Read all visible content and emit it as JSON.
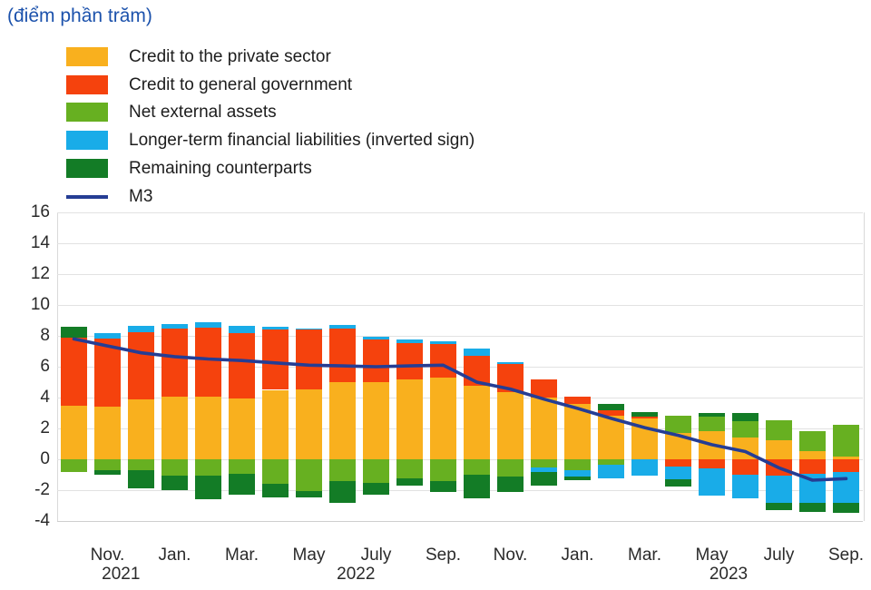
{
  "chart_data": {
    "type": "bar",
    "subtype": "stacked-bar-with-line",
    "title": "(điểm phần trăm)",
    "title_color": "#1c52ac",
    "x": [
      "Oct. 2021",
      "Nov. 2021",
      "Dec. 2021",
      "Jan. 2022",
      "Feb. 2022",
      "Mar. 2022",
      "Apr. 2022",
      "May 2022",
      "June 2022",
      "July 2022",
      "Aug. 2022",
      "Sep. 2022",
      "Oct. 2022",
      "Nov. 2022",
      "Dec. 2022",
      "Jan. 2023",
      "Feb. 2023",
      "Mar. 2023",
      "Apr. 2023",
      "May 2023",
      "June 2023",
      "July 2023",
      "Aug. 2023",
      "Sep. 2023"
    ],
    "series": [
      {
        "name": "Credit to the private sector",
        "color": "#F9B01E",
        "values": [
          3.45,
          3.4,
          3.9,
          4.05,
          4.05,
          3.95,
          4.5,
          4.55,
          5.0,
          5.0,
          5.2,
          5.3,
          4.75,
          4.35,
          4.0,
          3.6,
          2.8,
          2.65,
          1.7,
          1.85,
          1.4,
          1.25,
          0.55,
          0.15
        ]
      },
      {
        "name": "Credit to general government",
        "color": "#F5420D",
        "values": [
          4.45,
          4.45,
          4.35,
          4.4,
          4.5,
          4.25,
          3.9,
          3.85,
          3.45,
          2.75,
          2.35,
          2.15,
          1.95,
          1.85,
          1.15,
          0.45,
          0.4,
          0.1,
          -0.45,
          -0.6,
          -1.0,
          -1.05,
          -0.95,
          -0.8
        ]
      },
      {
        "name": "Net external assets",
        "color": "#67B021",
        "values": [
          -0.85,
          -0.7,
          -0.7,
          -1.05,
          -1.05,
          -0.95,
          -1.6,
          -2.05,
          -1.4,
          -1.55,
          -1.25,
          -1.4,
          -1.0,
          -1.1,
          -0.5,
          -0.7,
          -0.35,
          0,
          1.15,
          0.9,
          1.05,
          1.3,
          1.3,
          2.1
        ]
      },
      {
        "name": "Longer-term financial liabilities (inverted sign)",
        "color": "#19ACE8",
        "values": [
          0,
          0.35,
          0.4,
          0.3,
          0.35,
          0.45,
          0.2,
          0.05,
          0.25,
          0.2,
          0.2,
          0.2,
          0.45,
          0.1,
          -0.35,
          -0.4,
          -0.9,
          -1.05,
          -0.85,
          -1.75,
          -1.5,
          -1.8,
          -1.85,
          -2.05
        ]
      },
      {
        "name": "Remaining counterparts",
        "color": "#137C26",
        "values": [
          0.7,
          -0.3,
          -1.2,
          -0.95,
          -1.55,
          -1.35,
          -0.85,
          -0.4,
          -1.45,
          -0.75,
          -0.45,
          -0.7,
          -1.5,
          -1.0,
          -0.85,
          -0.25,
          0.4,
          0.3,
          -0.45,
          0.25,
          0.55,
          -0.45,
          -0.6,
          -0.6
        ]
      }
    ],
    "line_series": {
      "name": "M3",
      "color": "#253D94",
      "values": [
        7.8,
        7.35,
        6.9,
        6.65,
        6.5,
        6.4,
        6.25,
        6.1,
        6.05,
        6.0,
        6.05,
        6.1,
        5.0,
        4.55,
        3.9,
        3.3,
        2.65,
        2.05,
        1.55,
        0.95,
        0.5,
        -0.55,
        -1.35,
        -1.25
      ]
    },
    "ylim": [
      -4,
      16
    ],
    "ytick_step": 2,
    "ytick_labels": [
      "16",
      "14",
      "12",
      "10",
      "8",
      "6",
      "4",
      "2",
      "0",
      "-2",
      "-4"
    ],
    "x_ticks": [
      {
        "index": 1,
        "label": "Nov."
      },
      {
        "index": 3,
        "label": "Jan."
      },
      {
        "index": 5,
        "label": "Mar."
      },
      {
        "index": 7,
        "label": "May"
      },
      {
        "index": 9,
        "label": "July"
      },
      {
        "index": 11,
        "label": "Sep."
      },
      {
        "index": 13,
        "label": "Nov."
      },
      {
        "index": 15,
        "label": "Jan."
      },
      {
        "index": 17,
        "label": "Mar."
      },
      {
        "index": 19,
        "label": "May"
      },
      {
        "index": 21,
        "label": "July"
      },
      {
        "index": 23,
        "label": "Sep."
      }
    ],
    "year_labels": [
      {
        "label": "2021",
        "position_index": 1.4
      },
      {
        "label": "2022",
        "position_index": 8.4
      },
      {
        "label": "2023",
        "position_index": 19.5
      }
    ],
    "grid": true,
    "legend_position": "top-left"
  }
}
